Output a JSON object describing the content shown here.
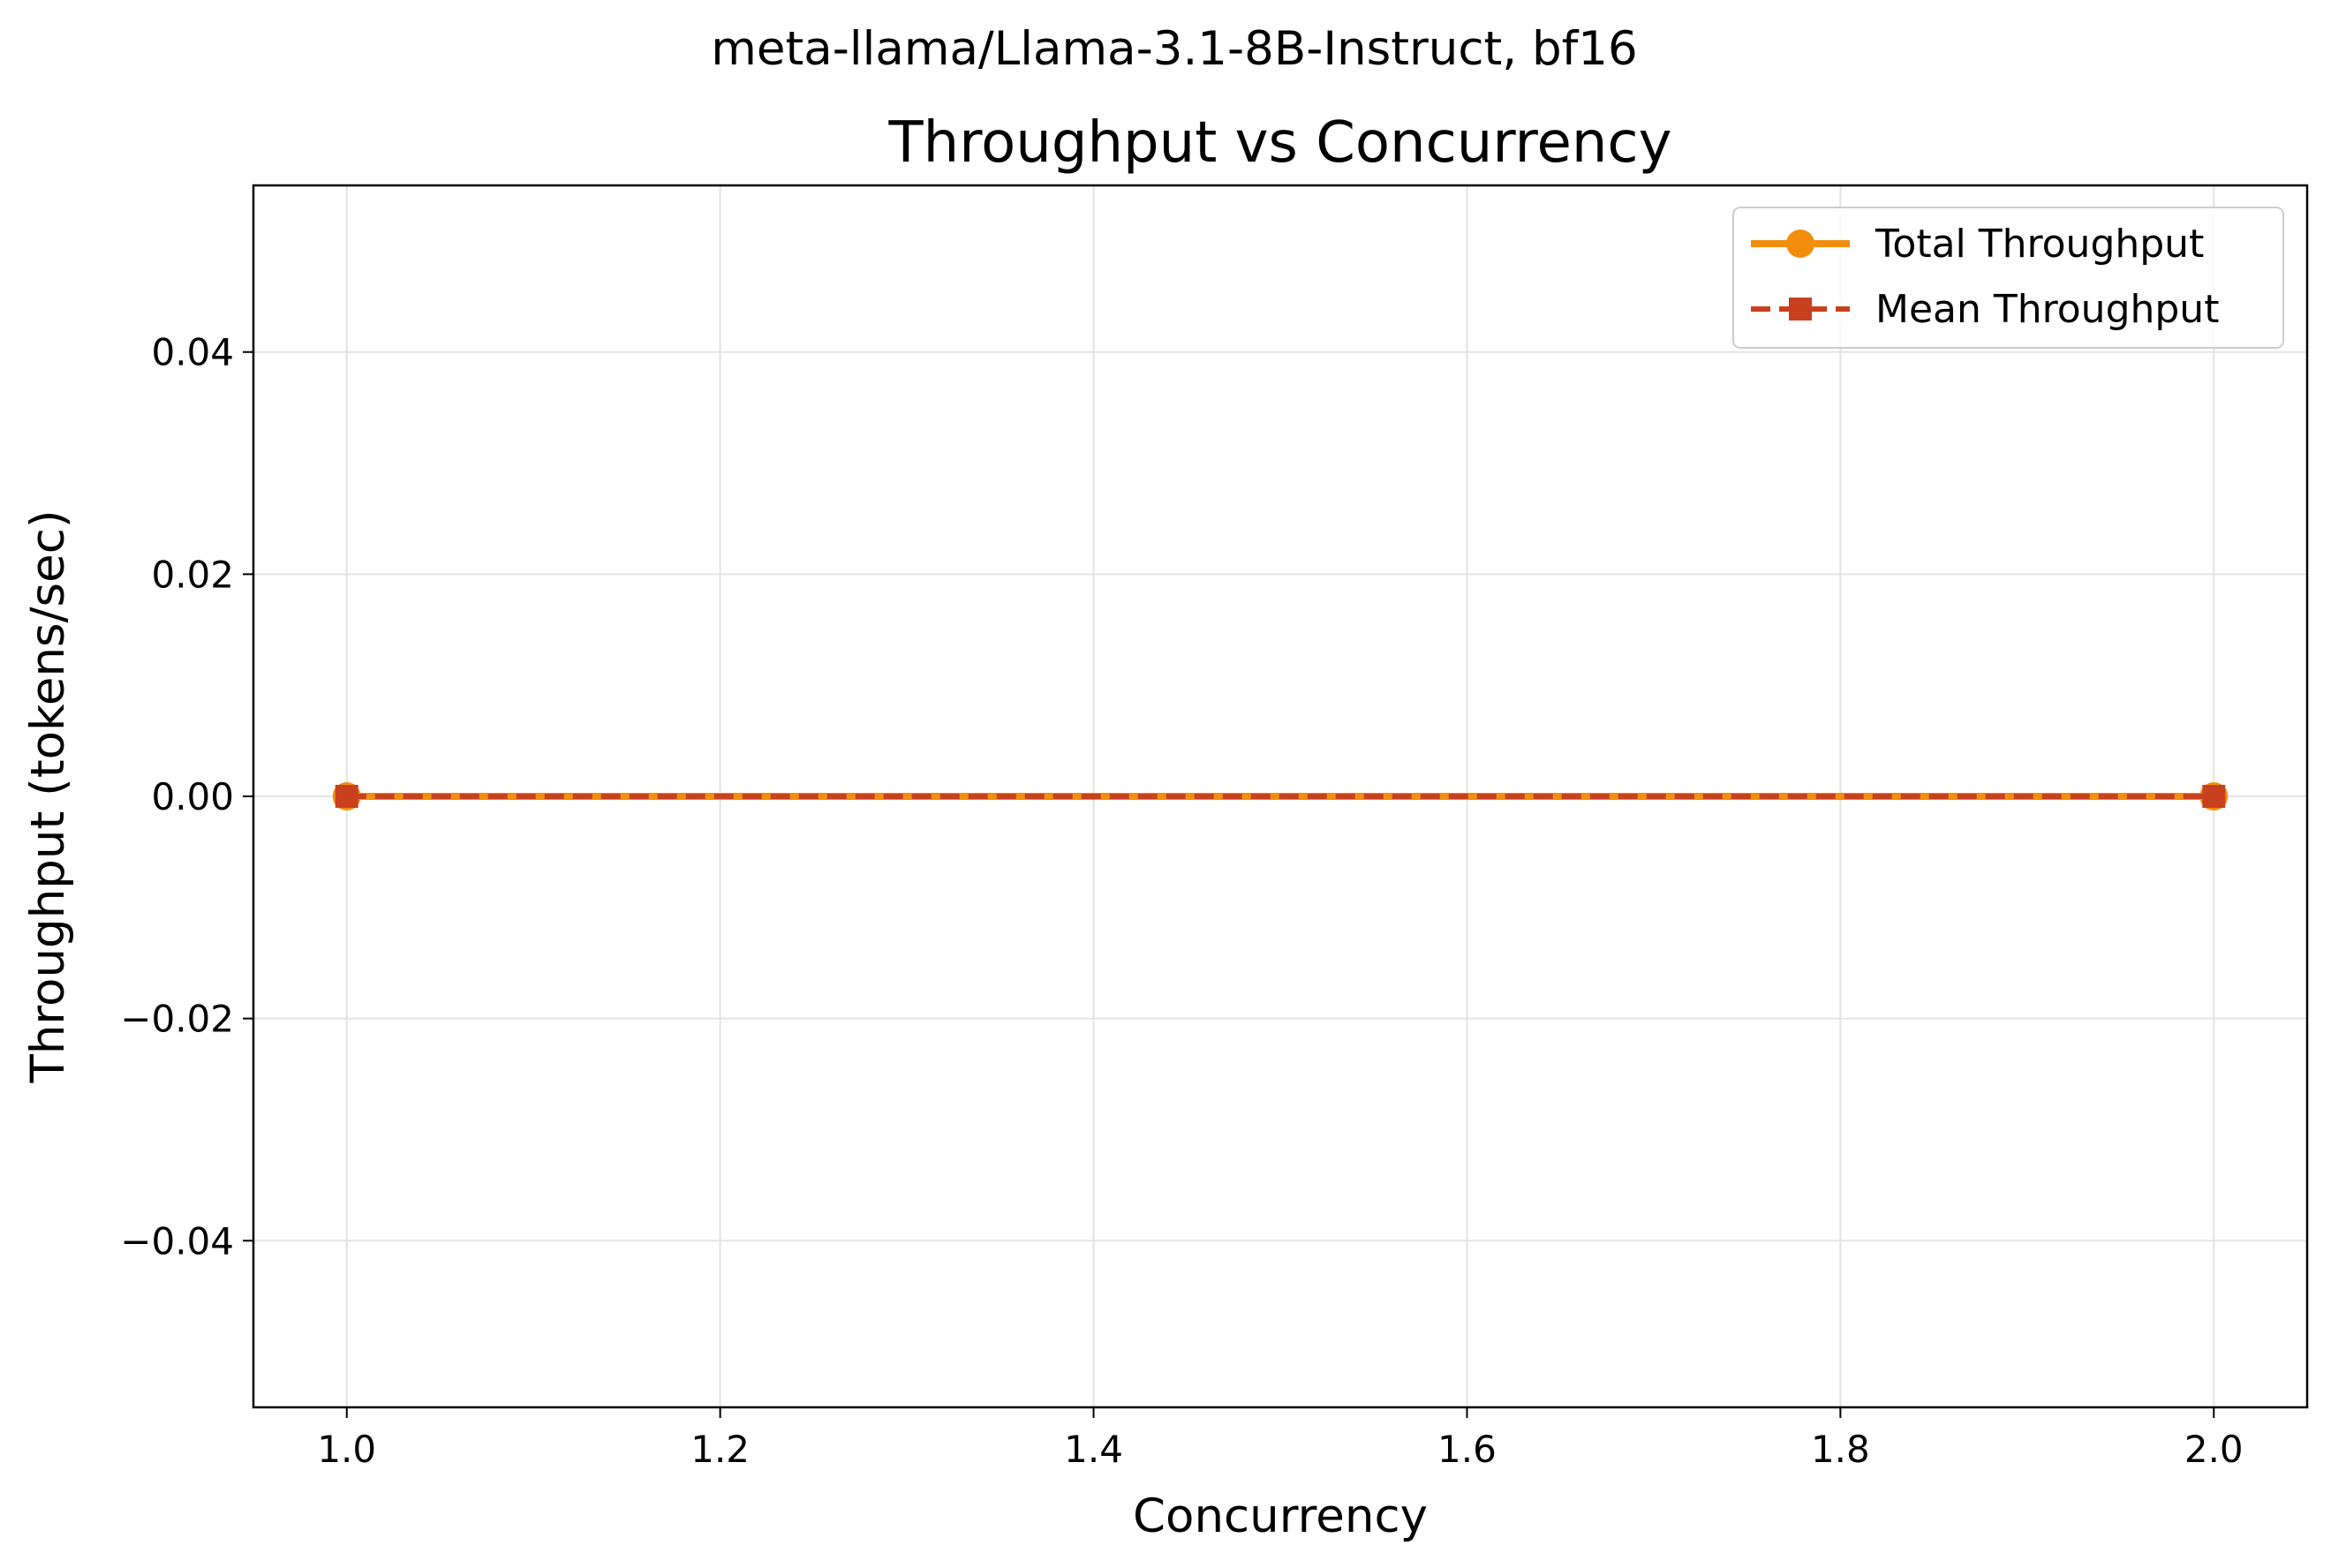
{
  "chart_data": {
    "type": "line",
    "suptitle": "meta-llama/Llama-3.1-8B-Instruct, bf16",
    "title": "Throughput vs Concurrency",
    "xlabel": "Concurrency",
    "ylabel": "Throughput (tokens/sec)",
    "x": [
      1.0,
      2.0
    ],
    "xlim": [
      0.95,
      2.05
    ],
    "ylim": [
      -0.055,
      0.055
    ],
    "xticks": [
      1.0,
      1.2,
      1.4,
      1.6,
      1.8,
      2.0
    ],
    "xtick_labels": [
      "1.0",
      "1.2",
      "1.4",
      "1.6",
      "1.8",
      "2.0"
    ],
    "yticks": [
      0.04,
      0.02,
      0.0,
      -0.02,
      -0.04
    ],
    "ytick_labels": [
      "0.04",
      "0.02",
      "0.00",
      "−0.02",
      "−0.04"
    ],
    "grid": true,
    "legend_position": "top-right",
    "series": [
      {
        "name": "Total Throughput",
        "values": [
          0.0,
          0.0
        ],
        "color": "#f28e0c",
        "line_style": "solid",
        "marker": "circle"
      },
      {
        "name": "Mean Throughput",
        "values": [
          0.0,
          0.0
        ],
        "color": "#c8401e",
        "line_style": "dashed",
        "marker": "square"
      }
    ]
  }
}
